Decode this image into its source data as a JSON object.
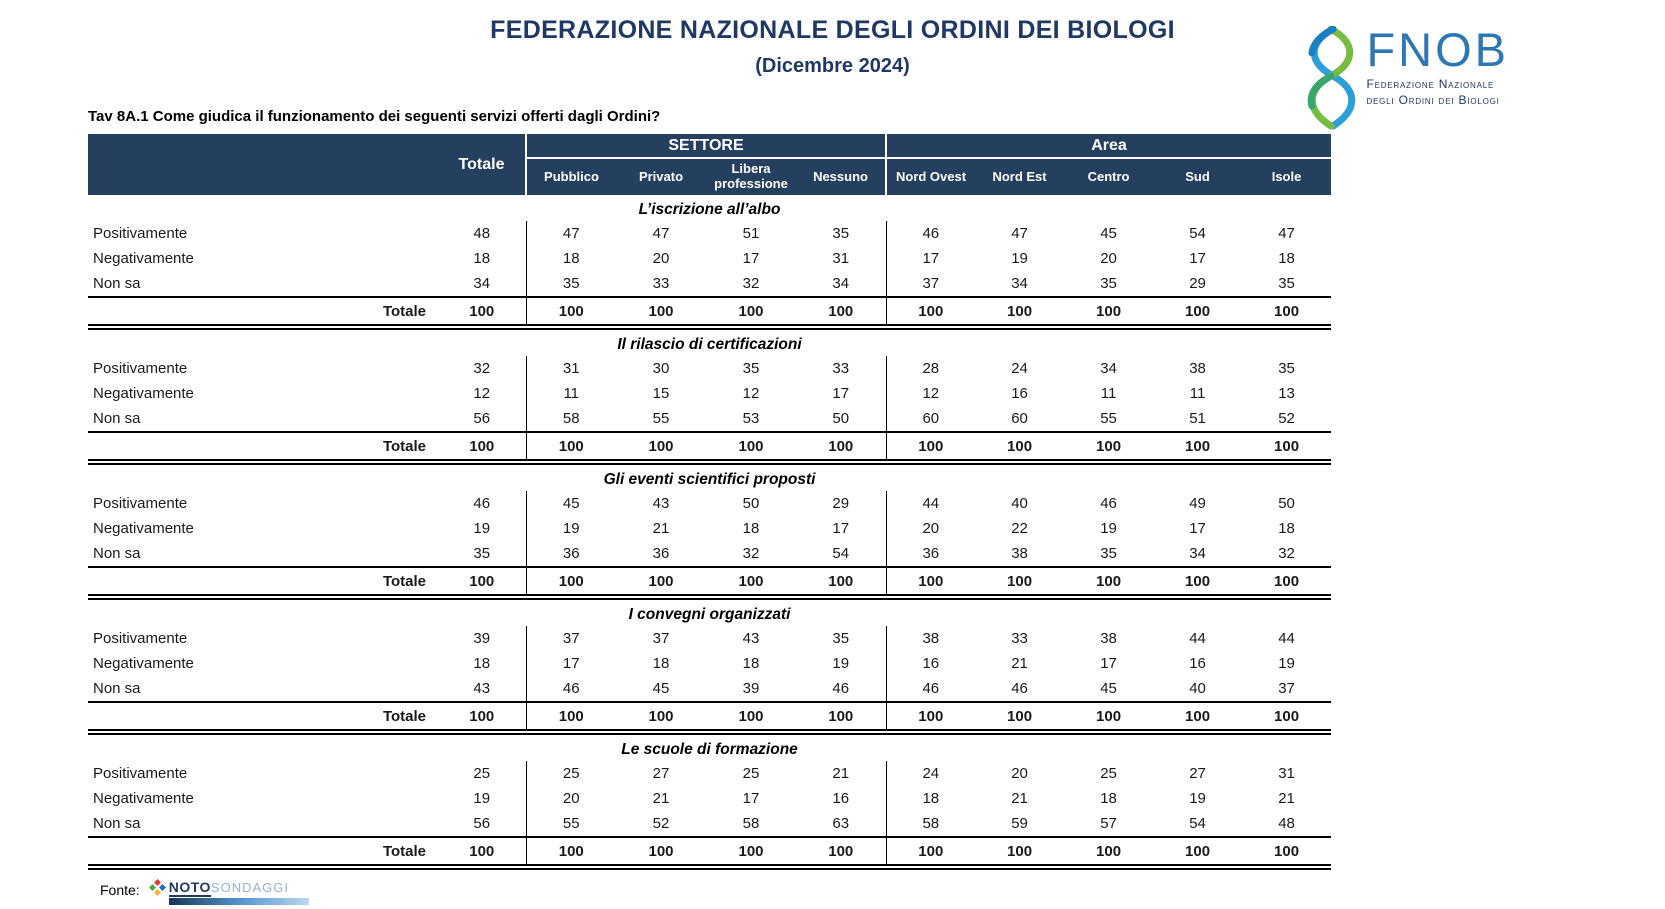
{
  "page": {
    "title": "FEDERAZIONE NAZIONALE DEGLI ORDINI DEI BIOLOGI",
    "subtitle": "(Dicembre 2024)"
  },
  "logo": {
    "acronym": "FNOB",
    "org_line1": "Federazione Nazionale",
    "org_line2": "degli Ordini dei Biologi"
  },
  "question": "Tav 8A.1 Come giudica il funzionamento dei seguenti servizi offerti dagli Ordini?",
  "table": {
    "group_settore": "SETTORE",
    "group_area": "Area",
    "columns": [
      "Totale",
      "Pubblico",
      "Privato",
      "Libera professione",
      "Nessuno",
      "Nord Ovest",
      "Nord Est",
      "Centro",
      "Sud",
      "Isole"
    ],
    "total_label": "Totale",
    "sections": [
      {
        "title": "L’iscrizione all’albo",
        "rows": [
          {
            "label": "Positivamente",
            "values": [
              48,
              47,
              47,
              51,
              35,
              46,
              47,
              45,
              54,
              47
            ]
          },
          {
            "label": "Negativamente",
            "values": [
              18,
              18,
              20,
              17,
              31,
              17,
              19,
              20,
              17,
              18
            ]
          },
          {
            "label": "Non sa",
            "values": [
              34,
              35,
              33,
              32,
              34,
              37,
              34,
              35,
              29,
              35
            ]
          }
        ],
        "totals": [
          100,
          100,
          100,
          100,
          100,
          100,
          100,
          100,
          100,
          100
        ]
      },
      {
        "title": "Il rilascio di certificazioni",
        "rows": [
          {
            "label": "Positivamente",
            "values": [
              32,
              31,
              30,
              35,
              33,
              28,
              24,
              34,
              38,
              35
            ]
          },
          {
            "label": "Negativamente",
            "values": [
              12,
              11,
              15,
              12,
              17,
              12,
              16,
              11,
              11,
              13
            ]
          },
          {
            "label": "Non sa",
            "values": [
              56,
              58,
              55,
              53,
              50,
              60,
              60,
              55,
              51,
              52
            ]
          }
        ],
        "totals": [
          100,
          100,
          100,
          100,
          100,
          100,
          100,
          100,
          100,
          100
        ]
      },
      {
        "title": "Gli eventi scientifici proposti",
        "rows": [
          {
            "label": "Positivamente",
            "values": [
              46,
              45,
              43,
              50,
              29,
              44,
              40,
              46,
              49,
              50
            ]
          },
          {
            "label": "Negativamente",
            "values": [
              19,
              19,
              21,
              18,
              17,
              20,
              22,
              19,
              17,
              18
            ]
          },
          {
            "label": "Non sa",
            "values": [
              35,
              36,
              36,
              32,
              54,
              36,
              38,
              35,
              34,
              32
            ]
          }
        ],
        "totals": [
          100,
          100,
          100,
          100,
          100,
          100,
          100,
          100,
          100,
          100
        ]
      },
      {
        "title": "I convegni organizzati",
        "rows": [
          {
            "label": "Positivamente",
            "values": [
              39,
              37,
              37,
              43,
              35,
              38,
              33,
              38,
              44,
              44
            ]
          },
          {
            "label": "Negativamente",
            "values": [
              18,
              17,
              18,
              18,
              19,
              16,
              21,
              17,
              16,
              19
            ]
          },
          {
            "label": "Non sa",
            "values": [
              43,
              46,
              45,
              39,
              46,
              46,
              46,
              45,
              40,
              37
            ]
          }
        ],
        "totals": [
          100,
          100,
          100,
          100,
          100,
          100,
          100,
          100,
          100,
          100
        ]
      },
      {
        "title": "Le scuole di formazione",
        "rows": [
          {
            "label": "Positivamente",
            "values": [
              25,
              25,
              27,
              25,
              21,
              24,
              20,
              25,
              27,
              31
            ]
          },
          {
            "label": "Negativamente",
            "values": [
              19,
              20,
              21,
              17,
              16,
              18,
              21,
              18,
              19,
              21
            ]
          },
          {
            "label": "Non sa",
            "values": [
              56,
              55,
              52,
              58,
              63,
              58,
              59,
              57,
              54,
              48
            ]
          }
        ],
        "totals": [
          100,
          100,
          100,
          100,
          100,
          100,
          100,
          100,
          100,
          100
        ]
      }
    ]
  },
  "footer": {
    "fonte_label": "Fonte:",
    "noto": "NOTO",
    "sondaggi": "SONDAGGI"
  }
}
